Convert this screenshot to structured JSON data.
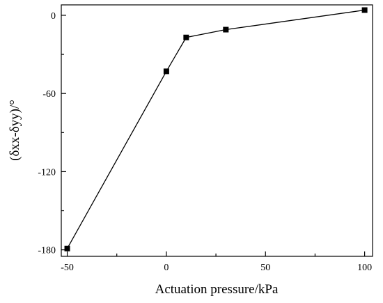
{
  "chart_data": {
    "type": "line",
    "xlabel": "Actuation pressure/kPa",
    "ylabel": "(δxx-δyy)/°",
    "xlim": [
      -53,
      104
    ],
    "ylim": [
      -185,
      8
    ],
    "x_ticks": [
      -50,
      0,
      50,
      100
    ],
    "y_ticks": [
      0,
      -60,
      -120,
      -180
    ],
    "x_tick_labels": [
      "-50",
      "0",
      "50",
      "100"
    ],
    "y_tick_labels": [
      "0",
      "-60",
      "-120",
      "-180"
    ],
    "grid": false,
    "marker": "square",
    "series": [
      {
        "x": [
          -50,
          0,
          10,
          30,
          100
        ],
        "y": [
          -179,
          -43,
          -17,
          -11,
          4
        ]
      }
    ],
    "colors": {
      "line": "#000000",
      "marker": "#000000",
      "axis": "#000000"
    }
  }
}
